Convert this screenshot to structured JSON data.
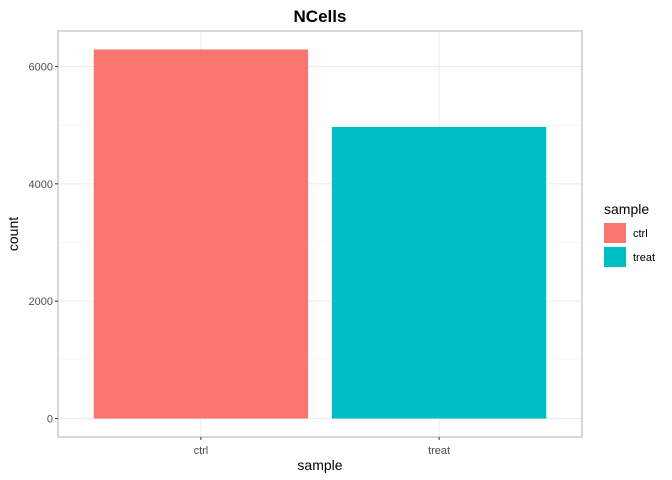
{
  "chart_data": {
    "type": "bar",
    "title": "NCells",
    "xlabel": "sample",
    "ylabel": "count",
    "categories": [
      "ctrl",
      "treat"
    ],
    "values": [
      6290,
      4970
    ],
    "colors": [
      "#F8766D",
      "#00BFC4"
    ],
    "ylim": [
      -314.5,
      6604.5
    ],
    "yticks": [
      0,
      2000,
      4000,
      6000
    ],
    "yticklabels": [
      "0",
      "2000",
      "4000",
      "6000"
    ],
    "grid": true,
    "legend": {
      "title": "sample",
      "position": "right",
      "entries": [
        "ctrl",
        "treat"
      ]
    }
  }
}
